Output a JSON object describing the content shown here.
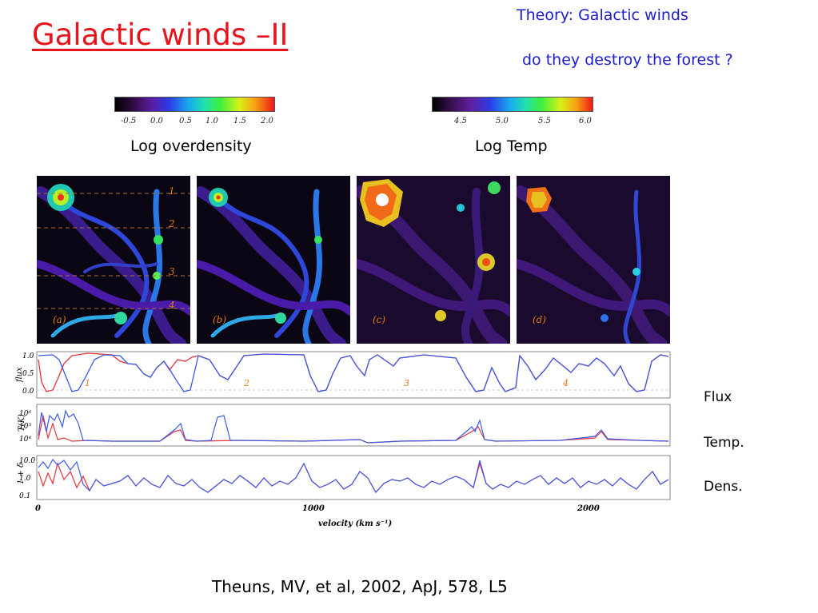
{
  "slide": {
    "title": "Galactic winds –II",
    "header_line1": "Theory: Galactic winds",
    "header_line2": "do they destroy the forest ?",
    "citation": "Theuns, MV, et al, 2002, ApJ, 578, L5"
  },
  "colorbars": {
    "density": {
      "label": "Log overdensity",
      "ticks": [
        "-0.5",
        "0.0",
        "0.5",
        "1.0",
        "1.5",
        "2.0"
      ]
    },
    "temperature": {
      "label": "Log Temp",
      "ticks": [
        "4.5",
        "5.0",
        "5.5",
        "6.0"
      ]
    }
  },
  "panels": [
    {
      "tag": "(a)"
    },
    {
      "tag": "(b)"
    },
    {
      "tag": "(c)"
    },
    {
      "tag": "(d)"
    }
  ],
  "skewer_numbers": [
    "1",
    "2",
    "3",
    "4"
  ],
  "spectra": {
    "flux_axis": {
      "label": "flux",
      "ticks": [
        "1.0",
        "0.5",
        "0.0"
      ]
    },
    "temp_axis": {
      "label": "T(K)",
      "ticks": [
        "10⁶",
        "10⁵",
        "10⁴"
      ]
    },
    "dens_axis": {
      "label": "1 + δ",
      "ticks": [
        "10.0",
        "1.0",
        "0.1"
      ]
    },
    "x_ticks": [
      "0",
      "1000",
      "2000"
    ],
    "x_label": "velocity (km s⁻¹)",
    "segment_labels": [
      "1",
      "2",
      "3",
      "4"
    ],
    "colors": {
      "series_a": "#e8323c",
      "series_b": "#3c5ae6"
    }
  },
  "row_labels": {
    "flux": "Flux",
    "temp": "Temp.",
    "dens": "Dens."
  }
}
